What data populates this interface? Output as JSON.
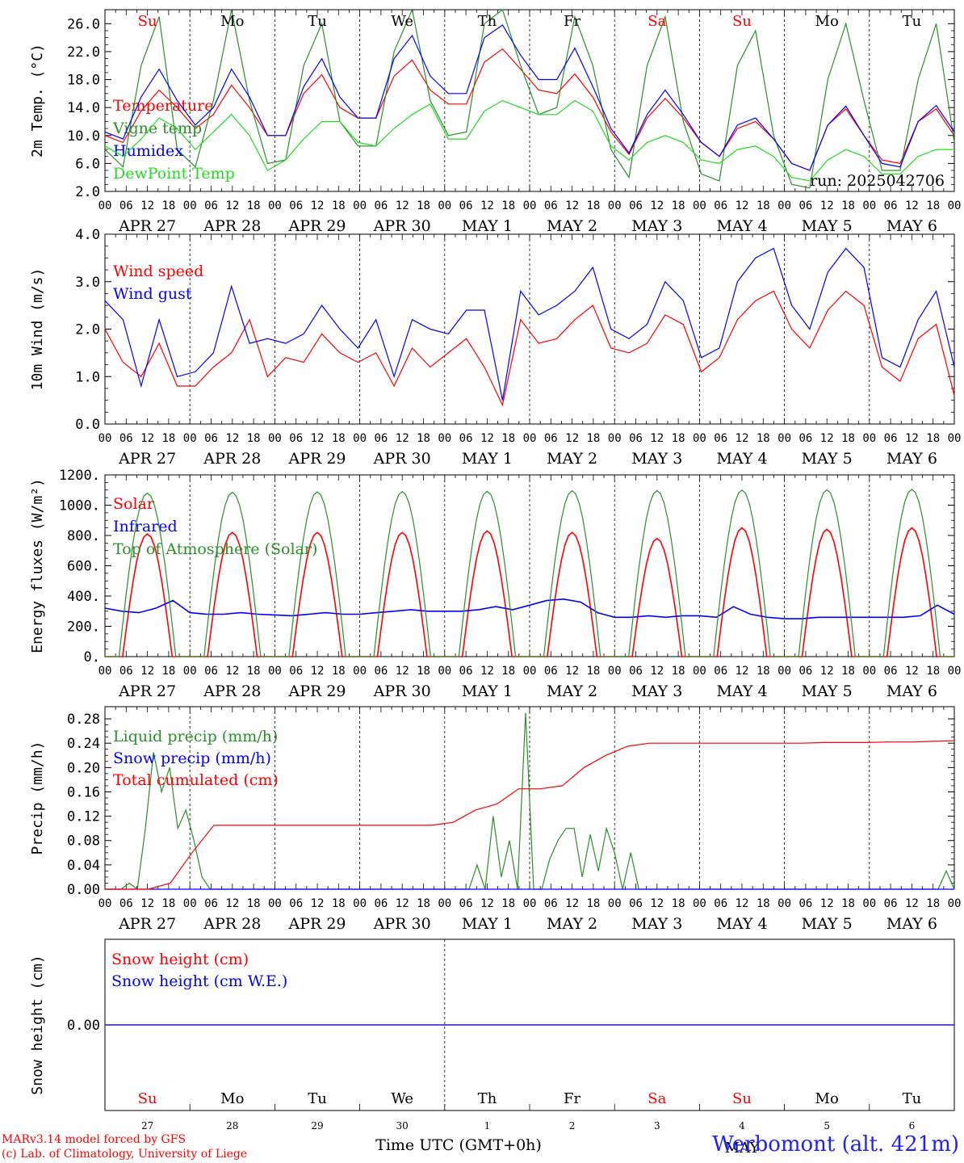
{
  "colors": {
    "red": "#ff0000",
    "green": "#2a8f2a",
    "lightgreen": "#22dd22",
    "blue": "#0000ff",
    "black": "#000000"
  },
  "time_axis": {
    "hour_ticks": [
      "00",
      "06",
      "12",
      "18"
    ],
    "date_labels": [
      "APR 27",
      "APR 28",
      "APR 29",
      "APR 30",
      "MAY  1",
      "MAY  2",
      "MAY  3",
      "MAY  4",
      "MAY  5",
      "MAY  6"
    ],
    "weekdays": [
      "Su",
      "Mo",
      "Tu",
      "We",
      "Th",
      "Fr",
      "Sa",
      "Su",
      "Mo",
      "Tu"
    ],
    "weekday_colors": [
      "#ff0000",
      "#000000",
      "#000000",
      "#000000",
      "#000000",
      "#000000",
      "#ff0000",
      "#ff0000",
      "#000000",
      "#000000"
    ],
    "day_numbers": [
      "27",
      "28",
      "29",
      "30",
      "1",
      "2",
      "3",
      "4",
      "5",
      "6"
    ],
    "month_label": "MAY",
    "xlabel": "Time UTC (GMT+0h)"
  },
  "run_label": "run: 2025042706",
  "footer": {
    "model": "MARv3.14 model forced by GFS",
    "lab": "(c) Lab. of Climatology, University of Liege",
    "station": "Werbomont (alt. 421m)"
  },
  "chart_data": [
    {
      "type": "line",
      "ylabel": "2m Temp. (°C)",
      "ylim": [
        2,
        28
      ],
      "yticks": [
        "2.0",
        "6.0",
        "10.0",
        "14.0",
        "18.0",
        "22.0",
        "26.0"
      ],
      "series": [
        {
          "name": "Temperature",
          "color": "#ff0000",
          "values": [
            10.0,
            9.0,
            13.5,
            16.5,
            14.0,
            11.0,
            13.0,
            17.2,
            14.0,
            10.0,
            10.0,
            16.0,
            18.7,
            14.0,
            12.5,
            12.5,
            18.5,
            20.8,
            16.5,
            14.5,
            14.5,
            20.5,
            22.4,
            19.5,
            16.5,
            16.0,
            18.8,
            15.5,
            10.5,
            7.3,
            12.5,
            15.3,
            12.5,
            9.0,
            7.0,
            11.0,
            12.0,
            9.5,
            6.0,
            5.0,
            11.5,
            13.8,
            10.0,
            6.5,
            6.0,
            12.0,
            13.8,
            10.0
          ]
        },
        {
          "name": "Vigne temp",
          "color": "#2a8f2a",
          "values": [
            8.0,
            5.5,
            20.0,
            27.0,
            8.0,
            5.5,
            15.0,
            28.0,
            15.0,
            6.0,
            6.5,
            20.0,
            26.0,
            12.0,
            8.5,
            8.5,
            22.0,
            28.0,
            15.0,
            10.0,
            10.5,
            26.0,
            28.0,
            20.0,
            13.0,
            14.0,
            27.0,
            20.0,
            8.0,
            4.0,
            20.0,
            27.0,
            12.0,
            4.5,
            3.5,
            20.0,
            25.0,
            10.0,
            3.0,
            2.5,
            18.0,
            26.0,
            15.0,
            5.0,
            5.0,
            18.0,
            26.0,
            9.0
          ]
        },
        {
          "name": "Humidex",
          "color": "#0000ff",
          "values": [
            10.5,
            9.5,
            15.5,
            19.5,
            15.0,
            11.5,
            14.0,
            19.5,
            15.5,
            10.0,
            10.0,
            17.0,
            21.0,
            15.5,
            12.5,
            12.5,
            21.0,
            24.3,
            18.5,
            16.0,
            16.0,
            24.0,
            25.8,
            21.5,
            18.0,
            18.0,
            22.5,
            17.0,
            11.0,
            7.5,
            13.0,
            16.5,
            13.0,
            9.0,
            7.0,
            11.5,
            12.5,
            9.5,
            6.0,
            5.0,
            11.5,
            14.2,
            10.0,
            6.0,
            5.5,
            12.0,
            14.3,
            10.5
          ]
        },
        {
          "name": "DewPoint Temp",
          "color": "#22dd22",
          "values": [
            8.5,
            7.0,
            9.5,
            12.5,
            11.0,
            8.0,
            10.5,
            13.0,
            10.0,
            5.0,
            6.5,
            9.5,
            12.0,
            12.0,
            9.0,
            8.5,
            11.0,
            13.0,
            14.5,
            9.5,
            9.5,
            13.5,
            15.0,
            14.0,
            13.0,
            13.0,
            15.0,
            13.5,
            8.5,
            6.5,
            9.0,
            10.0,
            9.0,
            6.5,
            6.0,
            8.0,
            8.5,
            7.0,
            4.0,
            3.5,
            6.5,
            8.0,
            7.0,
            4.5,
            4.5,
            7.0,
            8.0,
            8.0
          ]
        }
      ]
    },
    {
      "type": "line",
      "ylabel": "10m Wind (m/s)",
      "ylim": [
        0,
        4
      ],
      "yticks": [
        "0.0",
        "1.0",
        "2.0",
        "3.0",
        "4.0"
      ],
      "series": [
        {
          "name": "Wind speed",
          "color": "#ff0000",
          "values": [
            2.0,
            1.3,
            1.0,
            1.7,
            0.8,
            0.8,
            1.2,
            1.5,
            2.2,
            1.0,
            1.4,
            1.3,
            1.9,
            1.5,
            1.3,
            1.5,
            0.8,
            1.6,
            1.2,
            1.5,
            1.8,
            1.2,
            0.4,
            2.2,
            1.7,
            1.8,
            2.2,
            2.5,
            1.6,
            1.5,
            1.7,
            2.3,
            2.1,
            1.1,
            1.4,
            2.2,
            2.6,
            2.8,
            2.0,
            1.6,
            2.4,
            2.8,
            2.5,
            1.2,
            0.9,
            1.8,
            2.1,
            0.6
          ]
        },
        {
          "name": "Wind gust",
          "color": "#0000ff",
          "values": [
            2.6,
            2.2,
            0.8,
            2.2,
            1.0,
            1.1,
            1.5,
            2.9,
            1.7,
            1.8,
            1.7,
            1.9,
            2.5,
            2.0,
            1.6,
            2.2,
            1.0,
            2.2,
            2.0,
            1.9,
            2.4,
            2.4,
            0.5,
            2.8,
            2.3,
            2.5,
            2.8,
            3.3,
            2.0,
            1.8,
            2.1,
            3.0,
            2.6,
            1.4,
            1.6,
            3.0,
            3.5,
            3.7,
            2.5,
            2.0,
            3.2,
            3.7,
            3.3,
            1.4,
            1.2,
            2.2,
            2.8,
            1.2
          ]
        }
      ]
    },
    {
      "type": "line",
      "ylabel": "Energy fluxes (W/m²)",
      "ylim": [
        0,
        1200
      ],
      "yticks": [
        "0.",
        "200.",
        "400.",
        "600.",
        "800.",
        "1000.",
        "1200."
      ],
      "series": [
        {
          "name": "Solar",
          "color": "#ff0000",
          "values": [
            0,
            0,
            0,
            810,
            0,
            0,
            0,
            0,
            0,
            0,
            0,
            0,
            820,
            0,
            0,
            0,
            0,
            0,
            0,
            0,
            0,
            0,
            0,
            820,
            0,
            0,
            0,
            0,
            0,
            0,
            0,
            0,
            820,
            0,
            0,
            0,
            0,
            0,
            0,
            0,
            0,
            830,
            0,
            0,
            0,
            0,
            0,
            0,
            0,
            0,
            820,
            0,
            0,
            0,
            0,
            0,
            0,
            0,
            0,
            200,
            640,
            780,
            360,
            0,
            0,
            0,
            0,
            0,
            0,
            0,
            0,
            850,
            0,
            0,
            0,
            0,
            0,
            0,
            0,
            0,
            300,
            840,
            480,
            0,
            0,
            0,
            0,
            0,
            0,
            0,
            0,
            850,
            0,
            0,
            0,
            0,
            0,
            0,
            0,
            0,
            850,
            0,
            0
          ]
        },
        {
          "name": "Infrared",
          "color": "#0000ff",
          "values": [
            320,
            300,
            290,
            320,
            370,
            290,
            280,
            280,
            290,
            280,
            275,
            270,
            280,
            290,
            280,
            280,
            290,
            300,
            310,
            300,
            300,
            300,
            310,
            330,
            310,
            340,
            370,
            380,
            360,
            290,
            260,
            260,
            270,
            260,
            270,
            270,
            260,
            330,
            280,
            260,
            250,
            250,
            260,
            260,
            260,
            260,
            260,
            260,
            270,
            340,
            280
          ]
        },
        {
          "name": "Top of Atmosphere (Solar)",
          "color": "#2a8f2a",
          "values": [
            1080,
            1085,
            1088,
            1090,
            1092,
            1095,
            1097,
            1100,
            1102,
            1105
          ]
        }
      ]
    },
    {
      "type": "line",
      "ylabel": "Precip (mm/h)",
      "ylim": [
        0,
        0.3
      ],
      "yticks": [
        "0.00",
        "0.04",
        "0.08",
        "0.12",
        "0.16",
        "0.20",
        "0.24",
        "0.28"
      ],
      "series": [
        {
          "name": "Liquid precip (mm/h)",
          "color": "#2a8f2a",
          "values": [
            0,
            0,
            0,
            0.01,
            0,
            0.1,
            0.225,
            0.16,
            0.2,
            0.1,
            0.13,
            0.08,
            0.02,
            0,
            0,
            0,
            0,
            0,
            0,
            0,
            0,
            0,
            0,
            0,
            0,
            0,
            0,
            0,
            0,
            0,
            0,
            0,
            0,
            0,
            0,
            0,
            0,
            0,
            0,
            0,
            0,
            0,
            0,
            0,
            0,
            0,
            0.04,
            0,
            0.12,
            0.02,
            0.08,
            0,
            0.29,
            0,
            0,
            0.05,
            0.08,
            0.1,
            0.1,
            0.02,
            0.09,
            0.03,
            0.1,
            0.06,
            0,
            0.06,
            0,
            0,
            0,
            0,
            0,
            0,
            0,
            0,
            0,
            0,
            0,
            0,
            0,
            0,
            0,
            0,
            0,
            0,
            0,
            0,
            0,
            0,
            0,
            0,
            0,
            0,
            0,
            0,
            0,
            0,
            0,
            0,
            0,
            0,
            0,
            0,
            0,
            0,
            0.03,
            0
          ]
        },
        {
          "name": "Snow precip (mm/h)",
          "color": "#0000ff",
          "values": [
            0,
            0,
            0,
            0,
            0,
            0,
            0,
            0,
            0,
            0,
            0
          ]
        },
        {
          "name": "Total cumulated (cm)",
          "color": "#ff0000",
          "values": [
            0,
            0,
            0,
            0.01,
            0.06,
            0.105,
            0.105,
            0.105,
            0.105,
            0.105,
            0.105,
            0.105,
            0.105,
            0.105,
            0.105,
            0.105,
            0.11,
            0.13,
            0.14,
            0.165,
            0.165,
            0.17,
            0.2,
            0.22,
            0.235,
            0.24,
            0.24,
            0.24,
            0.24,
            0.24,
            0.24,
            0.24,
            0.24,
            0.241,
            0.241,
            0.241,
            0.242,
            0.242,
            0.243,
            0.244
          ]
        }
      ]
    },
    {
      "type": "line",
      "ylabel": "Snow height (cm)",
      "ylim": [
        -1,
        1
      ],
      "yticks": [
        "0.00"
      ],
      "series": [
        {
          "name": "Snow height (cm)",
          "color": "#ff0000",
          "values": [
            0,
            0
          ]
        },
        {
          "name": "Snow height (cm W.E.)",
          "color": "#0000ff",
          "values": [
            0,
            0
          ]
        }
      ]
    }
  ]
}
